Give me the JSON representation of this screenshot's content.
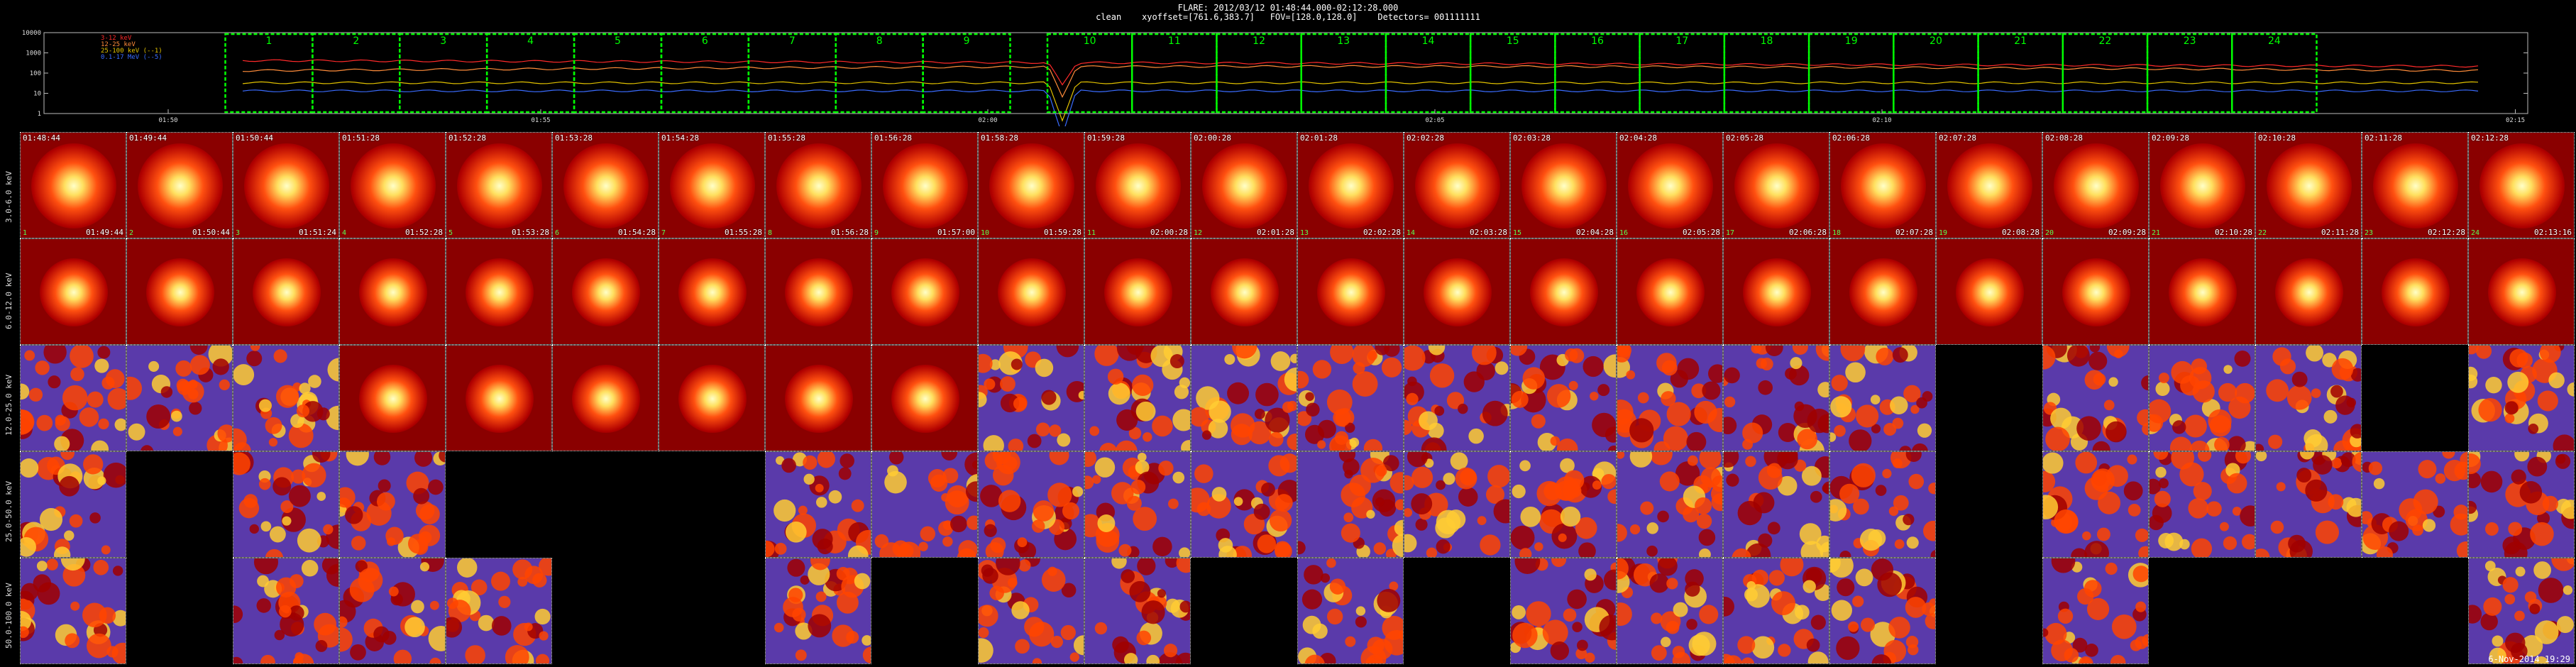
{
  "header": {
    "title": "FLARE: 2012/03/12 01:48:44.000-02:12:28.000",
    "subtitle": "clean    xyoffset=[761.6,383.7]   FOV=[128.0,128.0]    Detectors= 001111111"
  },
  "lightcurve": {
    "y_ticks": [
      "10000",
      "1000",
      "100",
      "10",
      "1"
    ],
    "x_ticks": [
      "01:50",
      "01:55",
      "02:00",
      "02:05",
      "02:10",
      "02:15"
    ],
    "legend": [
      {
        "label": "3-12 keV",
        "color": "#ff2a2a"
      },
      {
        "label": "12-25 keV",
        "color": "#ff8c3a"
      },
      {
        "label": "25-100 keV (--1)",
        "color": "#e0c000"
      },
      {
        "label": "0.1-17 MeV (--5)",
        "color": "#3a6cff"
      }
    ],
    "intervals": [
      "1",
      "2",
      "3",
      "4",
      "5",
      "6",
      "7",
      "8",
      "9",
      "10",
      "11",
      "12",
      "13",
      "14",
      "15",
      "16",
      "17",
      "18",
      "19",
      "20",
      "21",
      "22",
      "23",
      "24"
    ],
    "interval_color": "#00ff00"
  },
  "rows": [
    {
      "label": "3.0-6.0 keV"
    },
    {
      "label": "6.0-12.0 keV"
    },
    {
      "label": "12.0-25.0 keV"
    },
    {
      "label": "25.0-50.0 keV"
    },
    {
      "label": "50.0-100.0 keV"
    }
  ],
  "columns": {
    "start_times": [
      "01:48:44",
      "01:49:44",
      "01:50:44",
      "01:51:28",
      "01:52:28",
      "01:53:28",
      "01:54:28",
      "01:55:28",
      "01:56:28",
      "01:58:28",
      "01:59:28",
      "02:00:28",
      "02:01:28",
      "02:02:28",
      "02:03:28",
      "02:04:28",
      "02:05:28",
      "02:06:28",
      "02:07:28",
      "02:08:28",
      "02:09:28",
      "02:10:28",
      "02:11:28",
      "02:12:28"
    ],
    "end_times": [
      "01:49:44",
      "01:50:44",
      "01:51:24",
      "01:52:28",
      "01:53:28",
      "01:54:28",
      "01:55:28",
      "01:56:28",
      "01:57:00",
      "01:59:28",
      "02:00:28",
      "02:01:28",
      "02:02:28",
      "02:03:28",
      "02:04:28",
      "02:05:28",
      "02:06:28",
      "02:07:28",
      "02:08:28",
      "02:09:28",
      "02:10:28",
      "02:11:28",
      "02:12:28",
      "02:13:16"
    ],
    "index_labels": [
      "1",
      "2",
      "3",
      "4",
      "5",
      "6",
      "7",
      "8",
      "9",
      "10",
      "11",
      "12",
      "13",
      "14",
      "15",
      "16",
      "17",
      "18",
      "19",
      "20",
      "21",
      "22",
      "23",
      "24"
    ]
  },
  "cell_presence": [
    [
      1,
      1,
      1,
      1,
      1,
      1,
      1,
      1,
      1,
      1,
      1,
      1,
      1,
      1,
      1,
      1,
      1,
      1,
      1,
      1,
      1,
      1,
      1,
      1
    ],
    [
      1,
      1,
      1,
      1,
      1,
      1,
      1,
      1,
      1,
      1,
      1,
      1,
      1,
      1,
      1,
      1,
      1,
      1,
      1,
      1,
      1,
      1,
      1,
      1
    ],
    [
      1,
      1,
      1,
      1,
      1,
      1,
      1,
      1,
      1,
      1,
      1,
      1,
      1,
      1,
      1,
      1,
      1,
      1,
      0,
      1,
      1,
      1,
      0,
      1
    ],
    [
      1,
      0,
      1,
      1,
      0,
      0,
      0,
      1,
      1,
      1,
      1,
      1,
      1,
      1,
      1,
      1,
      1,
      1,
      0,
      1,
      1,
      1,
      1,
      1
    ],
    [
      1,
      0,
      1,
      1,
      1,
      0,
      0,
      1,
      0,
      1,
      1,
      0,
      1,
      0,
      1,
      1,
      1,
      1,
      0,
      1,
      0,
      0,
      0,
      1
    ]
  ],
  "cell_styles": {
    "smooth": "#ffe060",
    "noise": "#5a3aaa"
  },
  "footer": {
    "text": "6-Nov-2014 19:29"
  }
}
